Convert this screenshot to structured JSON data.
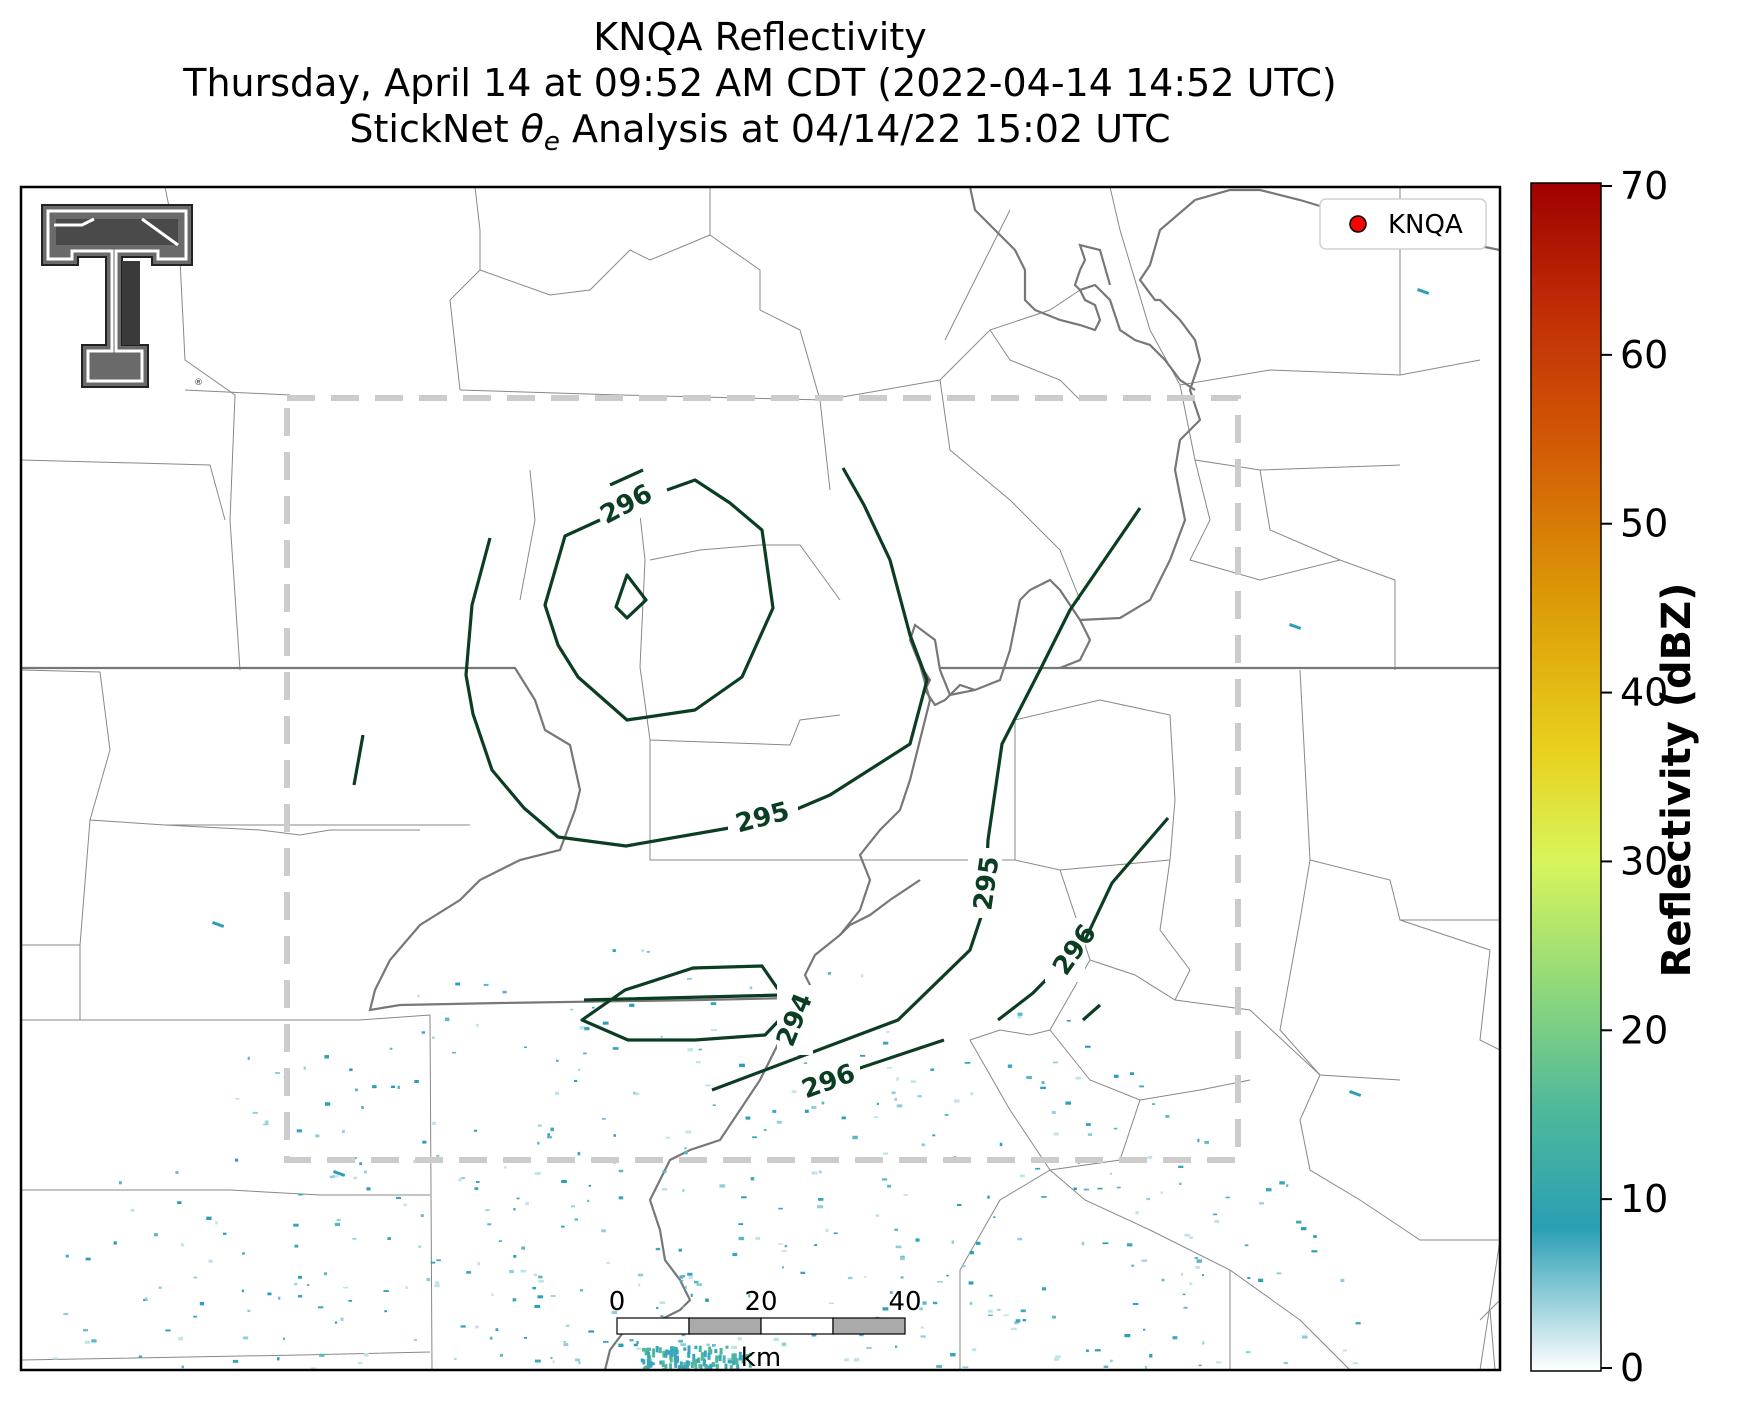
{
  "title": {
    "line1": "KNQA Reflectivity",
    "line2": "Thursday, April 14 at 09:52 AM CDT (2022-04-14 14:52 UTC)",
    "line3_prefix": "StickNet ",
    "line3_theta": "θ",
    "line3_sub": "e",
    "line3_suffix": " Analysis at 04/14/22 15:02 UTC"
  },
  "legend": {
    "station": "KNQA",
    "marker_color": "#ff0000"
  },
  "colorbar": {
    "label": "Reflectivity (dBZ)",
    "ticks": [
      "0",
      "10",
      "20",
      "30",
      "40",
      "50",
      "60",
      "70"
    ],
    "range": [
      0,
      70
    ],
    "colors": [
      "#ffffff",
      "#2a9fb5",
      "#4fb89a",
      "#8ed87c",
      "#d8f55b",
      "#f5e43a",
      "#e2a90a",
      "#d66a05",
      "#c43106",
      "#a30000"
    ]
  },
  "contour_labels": [
    "296",
    "295",
    "295",
    "296",
    "294",
    "296"
  ],
  "contour_color": "#0b3d22",
  "analysis_box_color": "#cccccc",
  "scale_bar": {
    "ticks": [
      "0",
      "20",
      "40"
    ],
    "unit": "km"
  },
  "logo": {
    "name": "Texas Tech Double T"
  }
}
